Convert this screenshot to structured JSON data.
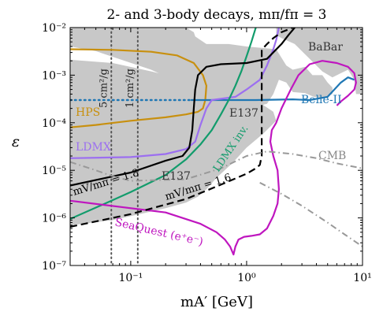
{
  "chart_data": {
    "type": "line",
    "title": "2- and 3-body decays, mπ/fπ = 3",
    "xlabel": "mA′ [GeV]",
    "ylabel": "ε",
    "xscale": "log",
    "yscale": "log",
    "xlim": [
      0.03,
      10
    ],
    "ylim": [
      1e-07,
      0.01
    ],
    "x_tick_labels": [
      "10⁻¹",
      "10⁰",
      "10¹"
    ],
    "y_tick_labels": [
      "10⁻⁷",
      "10⁻⁶",
      "10⁻⁵",
      "10⁻⁴",
      "10⁻³",
      "10⁻²"
    ],
    "shaded_regions": [
      {
        "name": "E137",
        "points": [
          [
            0.03,
            0.0021
          ],
          [
            0.04,
            0.002
          ],
          [
            0.07,
            0.0018
          ],
          [
            0.15,
            0.0012
          ],
          [
            0.3,
            0.0008
          ],
          [
            0.5,
            0.0006
          ],
          [
            0.8,
            0.00045
          ],
          [
            1.2,
            0.0003
          ],
          [
            1.7,
            0.00017
          ],
          [
            1.8,
            0.00011
          ],
          [
            1.4,
            6e-05
          ],
          [
            1.0,
            3e-05
          ],
          [
            0.75,
            1.4e-05
          ],
          [
            0.55,
            7e-06
          ],
          [
            0.45,
            4e-06
          ],
          [
            0.38,
            2.8e-06
          ],
          [
            0.3,
            2.1e-06
          ],
          [
            0.2,
            1.6e-06
          ],
          [
            0.12,
            1.2e-06
          ],
          [
            0.07,
            9e-07
          ],
          [
            0.03,
            7e-07
          ]
        ]
      },
      {
        "name": "upper-band",
        "points": [
          [
            0.03,
            0.01
          ],
          [
            0.3,
            0.01
          ],
          [
            0.35,
            0.008
          ],
          [
            0.36,
            0.0065
          ],
          [
            0.45,
            0.0045
          ],
          [
            0.7,
            0.0045
          ],
          [
            1.0,
            0.004
          ],
          [
            1.8,
            0.0035
          ],
          [
            2.2,
            0.0016
          ],
          [
            2.5,
            0.0013
          ],
          [
            3.2,
            0.0015
          ],
          [
            3.7,
            0.001
          ],
          [
            4.5,
            0.001
          ],
          [
            5.0,
            0.0007
          ],
          [
            5.5,
            0.00055
          ],
          [
            5.5,
            0.0004
          ],
          [
            4.5,
            0.00033
          ],
          [
            3.8,
            0.00035
          ],
          [
            3.2,
            0.00042
          ],
          [
            2.5,
            0.00044
          ],
          [
            2.2,
            0.0007
          ],
          [
            1.9,
            0.0008
          ],
          [
            1.7,
            0.0004
          ],
          [
            1.5,
            0.00025
          ],
          [
            1.2,
            0.00022
          ],
          [
            0.9,
            0.00026
          ],
          [
            0.6,
            0.00035
          ],
          [
            0.4,
            0.00045
          ],
          [
            0.3,
            0.0006
          ],
          [
            0.15,
            0.0013
          ],
          [
            0.05,
            0.0032
          ],
          [
            0.03,
            0.004
          ]
        ]
      },
      {
        "name": "BaBar",
        "points": [
          [
            1.8,
            0.01
          ],
          [
            10,
            0.01
          ],
          [
            10,
            0.0004
          ],
          [
            8.8,
            0.0004
          ],
          [
            8.5,
            0.0008
          ],
          [
            7.5,
            0.0013
          ],
          [
            6.5,
            0.0011
          ],
          [
            5.5,
            0.0009
          ],
          [
            4.5,
            0.0012
          ],
          [
            3.5,
            0.0022
          ],
          [
            2.6,
            0.0045
          ],
          [
            2.0,
            0.006
          ],
          [
            1.8,
            0.007
          ]
        ]
      }
    ],
    "series": [
      {
        "name": "HPS",
        "color": "#c8900f",
        "points": [
          [
            0.03,
            8e-05
          ],
          [
            0.05,
            9e-05
          ],
          [
            0.1,
            0.00011
          ],
          [
            0.2,
            0.00013
          ],
          [
            0.3,
            0.00015
          ],
          [
            0.38,
            0.00017
          ],
          [
            0.42,
            0.0002
          ],
          [
            0.44,
            0.0003
          ],
          [
            0.45,
            0.0006
          ],
          [
            0.42,
            0.001
          ],
          [
            0.35,
            0.0018
          ],
          [
            0.25,
            0.0026
          ],
          [
            0.15,
            0.0031
          ],
          [
            0.07,
            0.0034
          ],
          [
            0.03,
            0.0035
          ]
        ]
      },
      {
        "name": "Belle-II",
        "color": "#1f77b4",
        "points": [
          [
            0.33,
            0.0003
          ],
          [
            0.5,
            0.0003
          ],
          [
            0.8,
            0.0003
          ],
          [
            1.0,
            0.0003
          ],
          [
            1.2,
            0.0003
          ],
          [
            2.5,
            0.00031
          ],
          [
            3.5,
            0.0003
          ],
          [
            5.0,
            0.00035
          ],
          [
            6.5,
            0.0007
          ],
          [
            7.5,
            0.0009
          ],
          [
            8.5,
            0.0008
          ]
        ]
      },
      {
        "name": "LDMX",
        "color": "#9c6ff0",
        "points": [
          [
            0.03,
            1.8e-05
          ],
          [
            0.1,
            1.9e-05
          ],
          [
            0.2,
            2.2e-05
          ],
          [
            0.3,
            2.8e-05
          ],
          [
            0.36,
            4e-05
          ],
          [
            0.4,
            9e-05
          ],
          [
            0.45,
            0.0002
          ],
          [
            0.5,
            0.0003
          ],
          [
            0.8,
            0.00035
          ],
          [
            1.0,
            0.0005
          ],
          [
            1.3,
            0.0008
          ],
          [
            1.5,
            0.0016
          ],
          [
            1.7,
            0.0035
          ],
          [
            1.8,
            0.0055
          ],
          [
            1.9,
            0.01
          ]
        ]
      },
      {
        "name": "LDMX inv.",
        "color": "#129c6c",
        "points": [
          [
            0.03,
            9.5e-07
          ],
          [
            0.06,
            2e-06
          ],
          [
            0.1,
            3.5e-06
          ],
          [
            0.2,
            8e-06
          ],
          [
            0.3,
            1.7e-05
          ],
          [
            0.4,
            3.5e-05
          ],
          [
            0.5,
            7e-05
          ],
          [
            0.6,
            0.00015
          ],
          [
            0.7,
            0.0003
          ],
          [
            0.8,
            0.0006
          ],
          [
            0.9,
            0.0012
          ],
          [
            1.0,
            0.0025
          ],
          [
            1.1,
            0.005
          ],
          [
            1.2,
            0.01
          ]
        ]
      },
      {
        "name": "SeaQuest (e⁺e⁻)",
        "color": "#bf16bf",
        "points": [
          [
            0.03,
            2.3e-06
          ],
          [
            0.2,
            1.3e-06
          ],
          [
            0.4,
            7.5e-07
          ],
          [
            0.55,
            5e-07
          ],
          [
            0.65,
            3.5e-07
          ],
          [
            0.72,
            2.5e-07
          ],
          [
            0.77,
            1.7e-07
          ],
          [
            0.8,
            2.5e-07
          ],
          [
            0.85,
            3.5e-07
          ],
          [
            0.95,
            4e-07
          ],
          [
            1.1,
            4.2e-07
          ],
          [
            1.3,
            4.5e-07
          ],
          [
            1.5,
            6e-07
          ],
          [
            1.7,
            1.1e-06
          ],
          [
            1.85,
            2e-06
          ],
          [
            1.9,
            4e-06
          ],
          [
            1.85,
            1e-05
          ],
          [
            1.7,
            2e-05
          ],
          [
            1.6,
            4e-05
          ],
          [
            1.65,
            7e-05
          ],
          [
            1.8,
            0.0001
          ],
          [
            2.0,
            0.0002
          ],
          [
            2.4,
            0.0005
          ],
          [
            2.8,
            0.001
          ],
          [
            3.5,
            0.0017
          ],
          [
            4.5,
            0.002
          ],
          [
            6.0,
            0.0018
          ],
          [
            7.5,
            0.0015
          ],
          [
            8.5,
            0.0011
          ],
          [
            8.8,
            0.0007
          ],
          [
            8.5,
            0.0005
          ],
          [
            7.5,
            0.00037
          ],
          [
            6.5,
            0.00028
          ],
          [
            6.0,
            0.00023
          ]
        ]
      },
      {
        "name": "black-solid",
        "color": "#000000",
        "points": [
          [
            0.03,
            4.8e-06
          ],
          [
            0.1,
            9e-06
          ],
          [
            0.2,
            1.6e-05
          ],
          [
            0.28,
            2e-05
          ],
          [
            0.32,
            3e-05
          ],
          [
            0.34,
            7e-05
          ],
          [
            0.35,
            0.0002
          ],
          [
            0.36,
            0.0005
          ],
          [
            0.38,
            0.001
          ],
          [
            0.45,
            0.0015
          ],
          [
            0.6,
            0.0017
          ],
          [
            1.0,
            0.0018
          ],
          [
            1.5,
            0.0022
          ],
          [
            2.0,
            0.0045
          ],
          [
            2.3,
            0.007
          ],
          [
            2.6,
            0.01
          ]
        ]
      },
      {
        "name": "black-dashed",
        "color": "#000000",
        "points": [
          [
            0.03,
            6.5e-07
          ],
          [
            0.1,
            1.2e-06
          ],
          [
            0.3,
            2.5e-06
          ],
          [
            0.6,
            5e-06
          ],
          [
            1.0,
            8.5e-06
          ],
          [
            1.2,
            1.1e-05
          ],
          [
            1.3,
            1.3e-05
          ],
          [
            1.35,
            2e-05
          ],
          [
            1.35,
            5e-05
          ],
          [
            1.35,
            0.0001
          ],
          [
            1.35,
            0.0003
          ],
          [
            1.35,
            0.001
          ],
          [
            1.35,
            0.0034
          ],
          [
            1.5,
            0.0045
          ],
          [
            1.7,
            0.006
          ],
          [
            2.0,
            0.008
          ],
          [
            2.5,
            0.01
          ]
        ]
      },
      {
        "name": "Belle-II dotted",
        "color": "#1f77b4",
        "points": [
          [
            0.03,
            0.0003
          ],
          [
            0.33,
            0.0003
          ]
        ]
      },
      {
        "name": "CMB",
        "color": "#999999",
        "points": [
          [
            0.03,
            1.5e-05
          ],
          [
            0.05,
            1e-05
          ],
          [
            0.07,
            7.5e-06
          ],
          [
            0.1,
            6e-06
          ],
          [
            0.3,
            6.5e-06
          ],
          [
            0.6,
            1.1e-05
          ],
          [
            1.0,
            2e-05
          ],
          [
            1.5,
            2.5e-05
          ],
          [
            2.5,
            2.2e-05
          ],
          [
            4.0,
            1.8e-05
          ],
          [
            6.0,
            1.4e-05
          ],
          [
            10,
            1.1e-05
          ]
        ]
      },
      {
        "name": "CMB-lower",
        "color": "#999999",
        "points": [
          [
            1.3,
            5.5e-06
          ],
          [
            2.0,
            3.2e-06
          ],
          [
            3.0,
            1.8e-06
          ],
          [
            5.0,
            8e-07
          ],
          [
            7.0,
            4.5e-07
          ],
          [
            10,
            2.5e-07
          ]
        ]
      }
    ],
    "vertical_lines": [
      {
        "x": 0.068,
        "label": "5 cm²/g"
      },
      {
        "x": 0.115,
        "label": "1 cm²/g"
      }
    ],
    "annotations": [
      "BaBar",
      "Belle-II",
      "HPS",
      "LDMX",
      "LDMX inv.",
      "E137",
      "E137",
      "CMB",
      "mV/mπ = 1.8",
      "mV/mπ = 1.6",
      "SeaQuest (e⁺e⁻)"
    ]
  }
}
